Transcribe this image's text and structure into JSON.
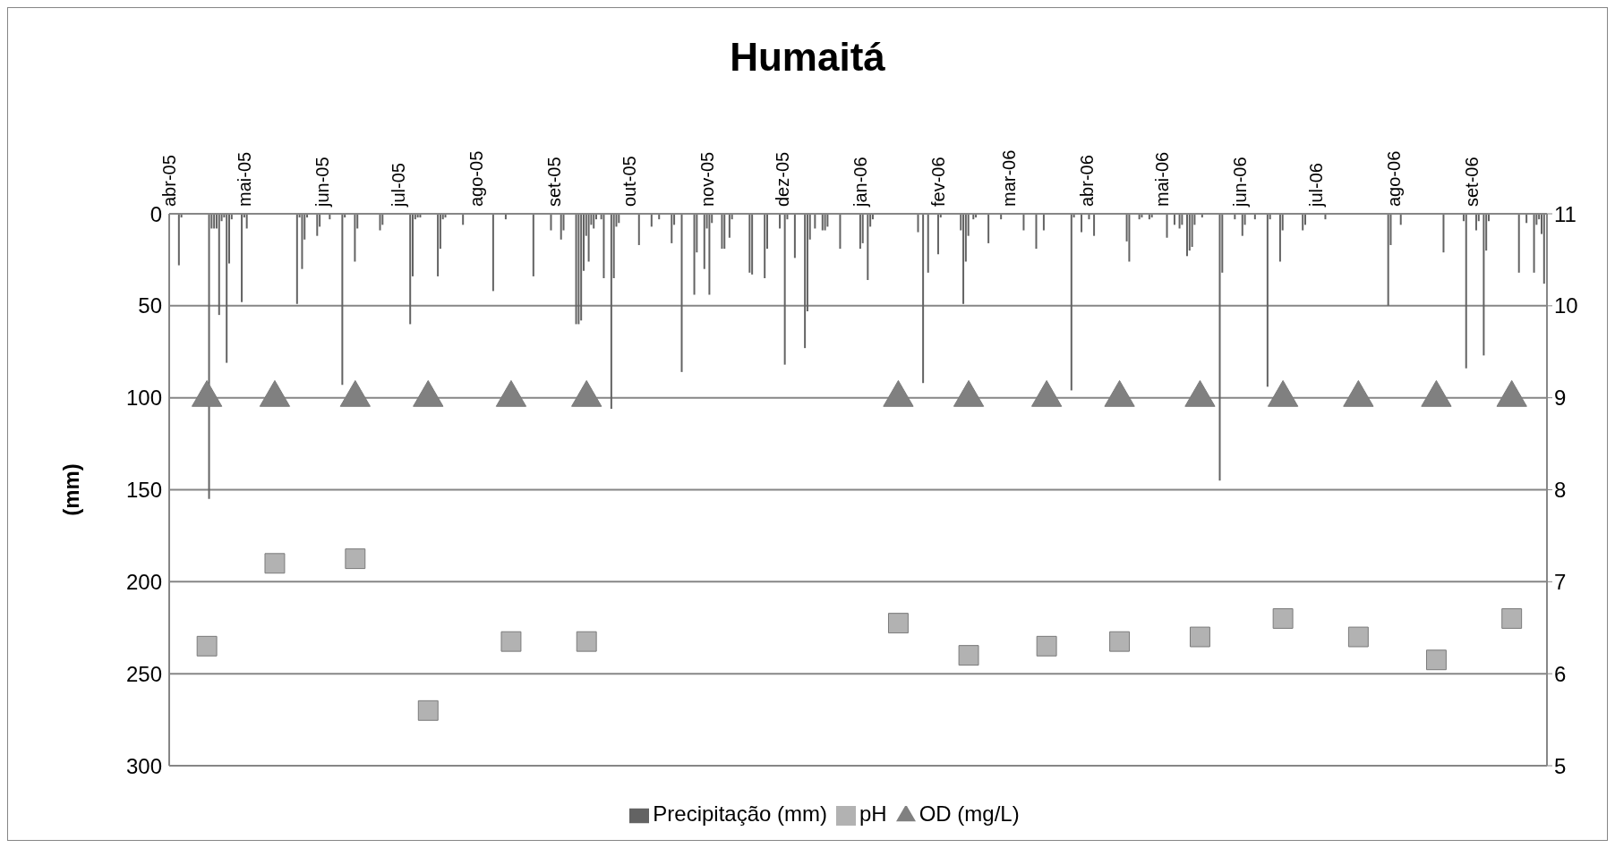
{
  "chart_data": {
    "type": "bar",
    "title": "Humaitá",
    "ylabel": "(mm)",
    "xlim": [
      "2005-04-01",
      "2006-10-01"
    ],
    "xticks": [
      {
        "value": "2005-04-01",
        "label": "abr-05"
      },
      {
        "value": "2005-05-01",
        "label": "mai-05"
      },
      {
        "value": "2005-06-01",
        "label": "jun-05"
      },
      {
        "value": "2005-07-01",
        "label": "jul-05"
      },
      {
        "value": "2005-08-01",
        "label": "ago-05"
      },
      {
        "value": "2005-09-01",
        "label": "set-05"
      },
      {
        "value": "2005-10-01",
        "label": "out-05"
      },
      {
        "value": "2005-11-01",
        "label": "nov-05"
      },
      {
        "value": "2005-12-01",
        "label": "dez-05"
      },
      {
        "value": "2006-01-01",
        "label": "jan-06"
      },
      {
        "value": "2006-02-01",
        "label": "fev-06"
      },
      {
        "value": "2006-03-01",
        "label": "mar-06"
      },
      {
        "value": "2006-04-01",
        "label": "abr-06"
      },
      {
        "value": "2006-05-01",
        "label": "mai-06"
      },
      {
        "value": "2006-06-01",
        "label": "jun-06"
      },
      {
        "value": "2006-07-01",
        "label": "jul-06"
      },
      {
        "value": "2006-08-01",
        "label": "ago-06"
      },
      {
        "value": "2006-09-01",
        "label": "set-06"
      }
    ],
    "ylim": [
      300,
      0
    ],
    "yticks": [
      0,
      50,
      100,
      150,
      200,
      250,
      300
    ],
    "y2lim": [
      5,
      11
    ],
    "y2ticks": [
      5,
      6,
      7,
      8,
      9,
      10,
      11
    ],
    "grid": "y",
    "legend": "bottom",
    "series": [
      {
        "name": "Precipitação (mm)",
        "color": "#636363",
        "x": [
          "2005-04-05",
          "2005-04-06",
          "2005-04-17",
          "2005-04-18",
          "2005-04-19",
          "2005-04-20",
          "2005-04-21",
          "2005-04-22",
          "2005-04-23",
          "2005-04-24",
          "2005-04-25",
          "2005-04-26",
          "2005-04-30",
          "2005-05-01",
          "2005-05-02",
          "2005-05-22",
          "2005-05-23",
          "2005-05-24",
          "2005-05-25",
          "2005-05-26",
          "2005-05-30",
          "2005-05-31",
          "2005-06-04",
          "2005-06-09",
          "2005-06-10",
          "2005-06-14",
          "2005-06-15",
          "2005-06-24",
          "2005-06-25",
          "2005-07-06",
          "2005-07-07",
          "2005-07-08",
          "2005-07-09",
          "2005-07-10",
          "2005-07-17",
          "2005-07-18",
          "2005-07-19",
          "2005-07-20",
          "2005-07-27",
          "2005-08-08",
          "2005-08-13",
          "2005-08-24",
          "2005-08-31",
          "2005-09-04",
          "2005-09-05",
          "2005-09-10",
          "2005-09-11",
          "2005-09-12",
          "2005-09-13",
          "2005-09-14",
          "2005-09-15",
          "2005-09-16",
          "2005-09-17",
          "2005-09-18",
          "2005-09-20",
          "2005-09-21",
          "2005-09-24",
          "2005-09-25",
          "2005-09-26",
          "2005-09-27",
          "2005-10-05",
          "2005-10-10",
          "2005-10-13",
          "2005-10-18",
          "2005-10-19",
          "2005-10-22",
          "2005-10-27",
          "2005-10-28",
          "2005-10-31",
          "2005-11-01",
          "2005-11-02",
          "2005-11-03",
          "2005-11-07",
          "2005-11-08",
          "2005-11-10",
          "2005-11-11",
          "2005-11-18",
          "2005-11-19",
          "2005-11-24",
          "2005-11-25",
          "2005-11-30",
          "2005-12-02",
          "2005-12-03",
          "2005-12-06",
          "2005-12-10",
          "2005-12-11",
          "2005-12-12",
          "2005-12-14",
          "2005-12-17",
          "2005-12-18",
          "2005-12-19",
          "2005-12-24",
          "2006-01-01",
          "2006-01-02",
          "2006-01-04",
          "2006-01-05",
          "2006-01-06",
          "2006-01-24",
          "2006-01-26",
          "2006-01-28",
          "2006-01-29",
          "2006-02-01",
          "2006-02-02",
          "2006-02-10",
          "2006-02-11",
          "2006-02-12",
          "2006-02-13",
          "2006-02-15",
          "2006-02-16",
          "2006-02-21",
          "2006-02-26",
          "2006-03-07",
          "2006-03-12",
          "2006-03-15",
          "2006-03-26",
          "2006-03-27",
          "2006-03-30",
          "2006-04-02",
          "2006-04-04",
          "2006-04-17",
          "2006-04-18",
          "2006-04-22",
          "2006-04-23",
          "2006-04-26",
          "2006-04-27",
          "2006-05-03",
          "2006-05-06",
          "2006-05-08",
          "2006-05-09",
          "2006-05-11",
          "2006-05-12",
          "2006-05-13",
          "2006-05-14",
          "2006-05-17",
          "2006-05-24",
          "2006-05-25",
          "2006-05-30",
          "2006-06-02",
          "2006-06-03",
          "2006-06-07",
          "2006-06-12",
          "2006-06-13",
          "2006-06-17",
          "2006-06-18",
          "2006-06-26",
          "2006-06-27",
          "2006-07-05",
          "2006-07-30",
          "2006-07-31",
          "2006-08-04",
          "2006-08-21",
          "2006-08-29",
          "2006-08-30",
          "2006-09-03",
          "2006-09-04",
          "2006-09-06",
          "2006-09-07",
          "2006-09-08",
          "2006-09-20",
          "2006-09-23",
          "2006-09-26",
          "2006-09-27",
          "2006-09-28",
          "2006-09-29",
          "2006-09-30"
        ],
        "values": [
          28,
          2,
          155,
          8,
          8,
          8,
          55,
          4,
          2,
          81,
          27,
          3,
          48,
          2,
          8,
          49,
          2,
          30,
          14,
          2,
          12,
          7,
          3,
          93,
          2,
          26,
          8,
          9,
          6,
          60,
          34,
          3,
          2,
          2,
          34,
          19,
          3,
          2,
          6,
          42,
          3,
          34,
          9,
          14,
          9,
          60,
          60,
          58,
          31,
          12,
          26,
          6,
          8,
          3,
          3,
          35,
          106,
          35,
          7,
          5,
          17,
          7,
          3,
          16,
          6,
          86,
          44,
          21,
          30,
          8,
          44,
          5,
          19,
          19,
          13,
          3,
          32,
          33,
          35,
          19,
          8,
          82,
          3,
          24,
          73,
          53,
          14,
          8,
          9,
          9,
          7,
          19,
          19,
          16,
          36,
          7,
          3,
          10,
          92,
          32,
          null,
          22,
          2,
          9,
          49,
          26,
          12,
          3,
          2,
          16,
          3,
          9,
          19,
          9,
          96,
          2,
          10,
          3,
          12,
          15,
          26,
          3,
          2,
          3,
          2,
          13,
          6,
          8,
          6,
          23,
          20,
          18,
          6,
          2,
          145,
          32,
          3,
          12,
          6,
          3,
          94,
          3,
          26,
          9,
          9,
          6,
          3,
          50,
          17,
          6,
          21,
          4,
          84,
          9,
          4,
          77,
          20,
          4,
          32,
          5,
          32,
          6,
          3,
          11,
          38
        ]
      },
      {
        "name": "pH",
        "type": "scatter",
        "axis": "y2",
        "marker": "square",
        "color": "#b2b2b2",
        "x": [
          "2005-04-16",
          "2005-05-13",
          "2005-06-14",
          "2005-07-13",
          "2005-08-15",
          "2005-09-14",
          "2006-01-16",
          "2006-02-13",
          "2006-03-16",
          "2006-04-14",
          "2006-05-16",
          "2006-06-18",
          "2006-07-18",
          "2006-08-18",
          "2006-09-17"
        ],
        "values": [
          6.3,
          7.2,
          7.25,
          5.6,
          6.35,
          6.35,
          6.55,
          6.2,
          6.3,
          6.35,
          6.4,
          6.6,
          6.4,
          6.15,
          6.6
        ]
      },
      {
        "name": "OD (mg/L)",
        "type": "scatter",
        "axis": "y2",
        "marker": "triangle",
        "color": "#808080",
        "x": [
          "2005-04-16",
          "2005-05-13",
          "2005-06-14",
          "2005-07-13",
          "2005-08-15",
          "2005-09-14",
          "2006-01-16",
          "2006-02-13",
          "2006-03-16",
          "2006-04-14",
          "2006-05-16",
          "2006-06-18",
          "2006-07-18",
          "2006-08-18",
          "2006-09-17"
        ],
        "values": [
          9,
          9,
          9,
          9,
          9,
          9,
          9,
          9,
          9,
          9,
          9,
          9,
          9,
          9,
          9
        ]
      }
    ]
  }
}
